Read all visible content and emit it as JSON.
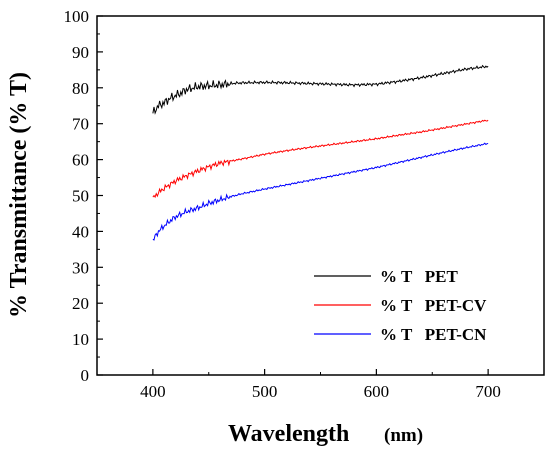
{
  "chart_data": {
    "type": "line",
    "title": "",
    "xlabel": "Wavelength",
    "xlabel_unit": "(nm)",
    "ylabel": "% Transmittance (% T)",
    "xlim": [
      350,
      750
    ],
    "ylim": [
      0,
      100
    ],
    "x_ticks": [
      "400",
      "500",
      "600",
      "700"
    ],
    "y_ticks": [
      "0",
      "10",
      "20",
      "30",
      "40",
      "50",
      "60",
      "70",
      "80",
      "90",
      "100"
    ],
    "grid": false,
    "legend_position": "lower-right",
    "series": [
      {
        "name": "% T   PET",
        "color": "#000000",
        "x": [
          400,
          405,
          410,
          415,
          420,
          425,
          430,
          440,
          450,
          460,
          470,
          480,
          500,
          520,
          540,
          560,
          580,
          600,
          620,
          640,
          660,
          680,
          700
        ],
        "y": [
          73,
          75,
          75.8,
          77,
          77.8,
          78.5,
          79.5,
          80.3,
          80.6,
          80.8,
          81.2,
          81.4,
          81.5,
          81.4,
          81.2,
          81,
          80.8,
          81,
          81.8,
          82.8,
          84,
          85.2,
          86
        ]
      },
      {
        "name": "% T   PET-CV",
        "color": "#ff0000",
        "x": [
          400,
          405,
          410,
          415,
          420,
          430,
          440,
          450,
          460,
          470,
          480,
          500,
          520,
          540,
          560,
          580,
          600,
          620,
          640,
          660,
          680,
          700
        ],
        "y": [
          49.2,
          50.8,
          52,
          53,
          54,
          55.5,
          56.8,
          58,
          59,
          59.6,
          60.2,
          61.5,
          62.5,
          63.4,
          64.2,
          65,
          65.8,
          66.8,
          67.7,
          68.8,
          69.9,
          71
        ]
      },
      {
        "name": "% T   PET-CN",
        "color": "#0000ff",
        "x": [
          400,
          405,
          410,
          415,
          420,
          430,
          440,
          450,
          460,
          470,
          480,
          500,
          520,
          540,
          560,
          580,
          600,
          620,
          640,
          660,
          680,
          700
        ],
        "y": [
          37.5,
          40,
          41.5,
          42.8,
          44,
          45.5,
          46.5,
          47.8,
          48.8,
          49.7,
          50.5,
          51.8,
          53,
          54.2,
          55.4,
          56.6,
          57.8,
          59.2,
          60.6,
          62,
          63.3,
          64.5
        ]
      }
    ]
  }
}
